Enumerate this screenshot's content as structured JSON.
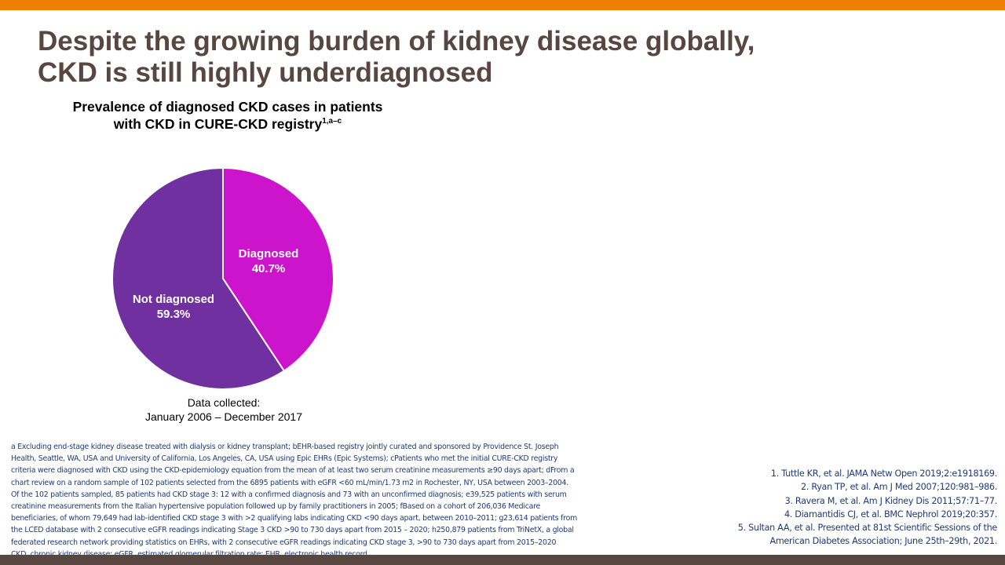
{
  "slide": {
    "title_line1": "Despite the growing burden of kidney disease globally,",
    "title_line2": "CKD is still highly underdiagnosed",
    "colors": {
      "top_bar": "#ee7f00",
      "bottom_bar": "#584640",
      "title": "#584640",
      "footnote": "#1f3a78"
    }
  },
  "chart_data": {
    "type": "pie",
    "title_line1": "Prevalence of diagnosed CKD cases in patients",
    "title_line2": "with CKD in CURE-CKD registry",
    "title_superscript": "1,a–c",
    "slices": [
      {
        "label": "Diagnosed",
        "value": 40.7,
        "value_label": "40.7%",
        "color": "#cc14cc"
      },
      {
        "label": "Not diagnosed",
        "value": 59.3,
        "value_label": "59.3%",
        "color": "#7030a0"
      }
    ],
    "start_angle": "12 o'clock",
    "direction": "clockwise"
  },
  "data_collected": {
    "line1": "Data collected:",
    "line2": "January 2006 – December 2017"
  },
  "footnote_lines": [
    "a Excluding end-stage kidney disease treated with dialysis or kidney transplant; bEHR-based registry jointly curated and sponsored by Providence St. Joseph",
    "Health, Seattle, WA, USA and University of California, Los Angeles, CA, USA using Epic EHRs (Epic Systems); cPatients who met the initial CURE-CKD registry",
    "criteria were diagnosed with CKD using the CKD-epidemiology equation from the mean of at least two serum creatinine measurements ≥90 days apart; dFrom a",
    "chart review on a random sample of 102 patients selected from the 6895 patients with eGFR <60 mL/min/1.73 m2 in Rochester, NY, USA between 2003–2004.",
    "Of the 102 patients sampled, 85 patients had CKD stage 3: 12 with a confirmed diagnosis and 73 with an unconfirmed diagnosis; e39,525 patients with serum",
    "creatinine measurements from the Italian hypertensive population followed up by family practitioners in 2005; fBased on a cohort of 206,036 Medicare",
    "beneficiaries, of whom 79,649 had lab-identified CKD stage 3 with >2 qualifying labs indicating CKD <90 days apart, between 2010–2011; g23,614 patients from",
    "the LCED database with 2 consecutive eGFR readings indicating Stage 3 CKD >90 to 730 days apart from 2015 – 2020; h250,879 patients from TriNetX, a global",
    "federated research network providing statistics on EHRs, with 2 consecutive eGFR readings indicating CKD stage 3, >90 to 730 days apart from 2015–2020",
    "CKD, chronic kidney disease; eGFR, estimated glomerular filtration rate; EHR, electronic health record"
  ],
  "references": [
    "1. Tuttle KR, et al. JAMA Netw Open 2019;2:e1918169.",
    "2. Ryan TP, et al. Am J Med 2007;120:981–986.",
    "3. Ravera M, et al. Am J Kidney Dis 2011;57:71–77.",
    "4. Diamantidis CJ, et al. BMC Nephrol 2019;20:357.",
    "5. Sultan AA, et al. Presented at 81st Scientific Sessions of the",
    "American Diabetes Association; June 25th–29th, 2021."
  ]
}
